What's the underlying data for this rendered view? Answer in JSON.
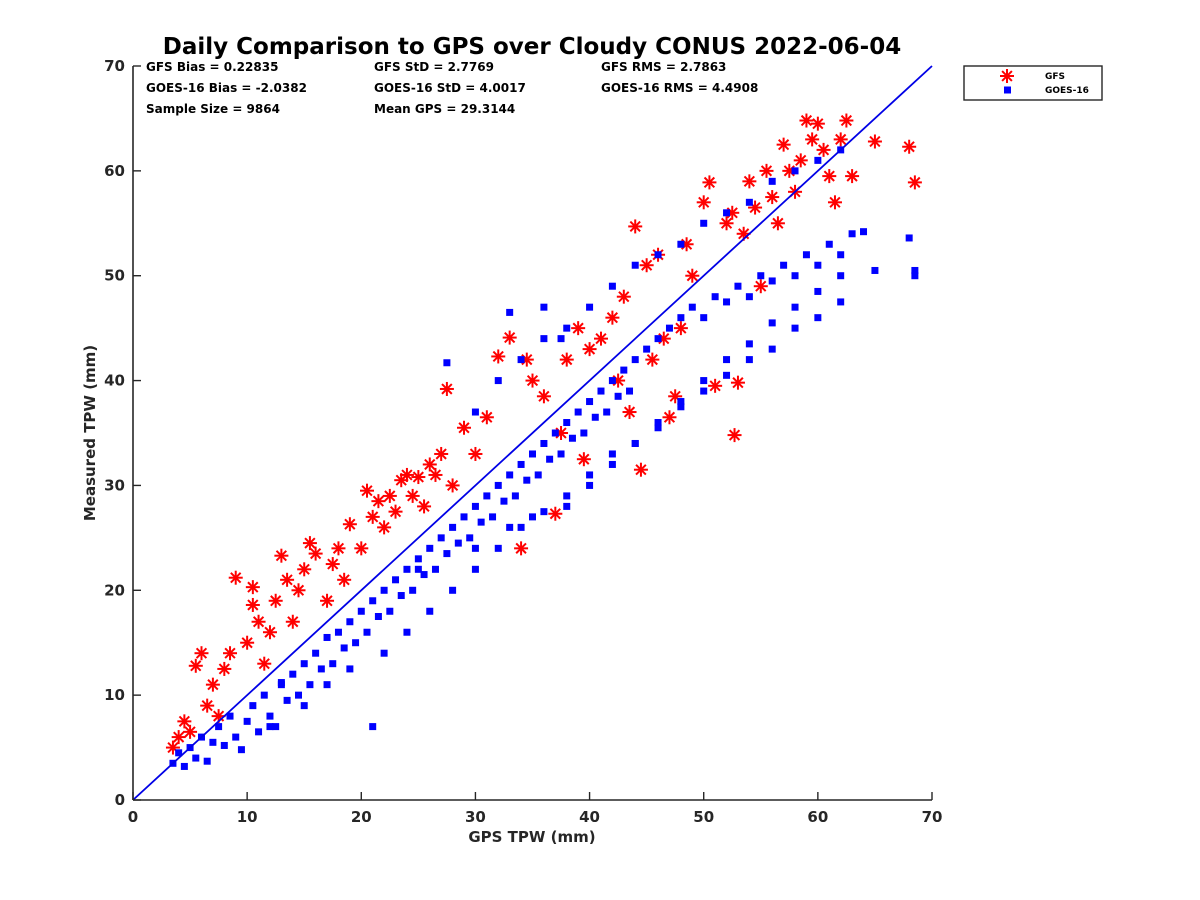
{
  "chart_data": {
    "type": "scatter",
    "title": "Daily Comparison to GPS over Cloudy CONUS 2022-06-04",
    "xlabel": "GPS TPW (mm)",
    "ylabel": "Measured TPW (mm)",
    "xlim": [
      0,
      70
    ],
    "ylim": [
      0,
      70
    ],
    "xticks": [
      "0",
      "10",
      "20",
      "30",
      "40",
      "50",
      "60",
      "70"
    ],
    "yticks": [
      "0",
      "10",
      "20",
      "30",
      "40",
      "50",
      "60",
      "70"
    ],
    "grid": false,
    "legend_position": "outside top-right",
    "reference_line": {
      "x": [
        0,
        70
      ],
      "y": [
        0,
        70
      ],
      "color": "#0000e6"
    },
    "stats": [
      "GFS Bias = 0.22835",
      "GFS StD = 2.7769",
      "GFS RMS = 2.7863",
      "GOES-16 Bias = -2.0382",
      "GOES-16 StD = 4.0017",
      "GOES-16 RMS = 4.4908",
      "Sample Size = 9864",
      "Mean GPS = 29.3144"
    ],
    "series": [
      {
        "name": "GFS",
        "marker": "asterisk",
        "color": "#ff0000",
        "points": [
          [
            3.5,
            5
          ],
          [
            4,
            6
          ],
          [
            4.5,
            7.5
          ],
          [
            5,
            6.5
          ],
          [
            5.5,
            12.8
          ],
          [
            6,
            14
          ],
          [
            6.5,
            9
          ],
          [
            7,
            11
          ],
          [
            7.5,
            8
          ],
          [
            8,
            12.5
          ],
          [
            8.5,
            14
          ],
          [
            9,
            21.2
          ],
          [
            10,
            15
          ],
          [
            10.5,
            20.3
          ],
          [
            10.5,
            18.6
          ],
          [
            11,
            17
          ],
          [
            11.5,
            13
          ],
          [
            12,
            16
          ],
          [
            12.5,
            19
          ],
          [
            13,
            23.3
          ],
          [
            13.5,
            21
          ],
          [
            14,
            17
          ],
          [
            14.5,
            20
          ],
          [
            15,
            22
          ],
          [
            15.5,
            24.5
          ],
          [
            16,
            23.5
          ],
          [
            17,
            19
          ],
          [
            17.5,
            22.5
          ],
          [
            18,
            24
          ],
          [
            18.5,
            21
          ],
          [
            19,
            26.3
          ],
          [
            20,
            24
          ],
          [
            20.5,
            29.5
          ],
          [
            21,
            27
          ],
          [
            21.5,
            28.5
          ],
          [
            22,
            26
          ],
          [
            22.5,
            29
          ],
          [
            23,
            27.5
          ],
          [
            23.5,
            30.5
          ],
          [
            24,
            31
          ],
          [
            24.5,
            29
          ],
          [
            25,
            30.8
          ],
          [
            25.5,
            28
          ],
          [
            26,
            32
          ],
          [
            26.5,
            31
          ],
          [
            27,
            33
          ],
          [
            27.5,
            39.2
          ],
          [
            28,
            30
          ],
          [
            29,
            35.5
          ],
          [
            30,
            33
          ],
          [
            31,
            36.5
          ],
          [
            32,
            42.3
          ],
          [
            33,
            44.1
          ],
          [
            34,
            24
          ],
          [
            34.5,
            42
          ],
          [
            35,
            40
          ],
          [
            36,
            38.5
          ],
          [
            37,
            27.3
          ],
          [
            37.5,
            35
          ],
          [
            38,
            42
          ],
          [
            39,
            45
          ],
          [
            39.5,
            32.5
          ],
          [
            40,
            43
          ],
          [
            41,
            44
          ],
          [
            42,
            46
          ],
          [
            42.5,
            40
          ],
          [
            43,
            48
          ],
          [
            43.5,
            37
          ],
          [
            44,
            54.7
          ],
          [
            44.5,
            31.5
          ],
          [
            45,
            51
          ],
          [
            45.5,
            42
          ],
          [
            46,
            52
          ],
          [
            46.5,
            44
          ],
          [
            47,
            36.5
          ],
          [
            47.5,
            38.5
          ],
          [
            48,
            45
          ],
          [
            48.5,
            53
          ],
          [
            49,
            50
          ],
          [
            50,
            57
          ],
          [
            50.5,
            58.9
          ],
          [
            51,
            39.5
          ],
          [
            52,
            55
          ],
          [
            52.5,
            56
          ],
          [
            53,
            39.8
          ],
          [
            53.5,
            54
          ],
          [
            54,
            59
          ],
          [
            54.5,
            56.5
          ],
          [
            55,
            49
          ],
          [
            55.5,
            60
          ],
          [
            56,
            57.5
          ],
          [
            56.5,
            55
          ],
          [
            57,
            62.5
          ],
          [
            57.5,
            60
          ],
          [
            58,
            58
          ],
          [
            58.5,
            61
          ],
          [
            59,
            64.8
          ],
          [
            59.5,
            63
          ],
          [
            60,
            64.5
          ],
          [
            60.5,
            62
          ],
          [
            61,
            59.5
          ],
          [
            61.5,
            57
          ],
          [
            62,
            63
          ],
          [
            62.5,
            64.8
          ],
          [
            63,
            59.5
          ],
          [
            65,
            62.8
          ],
          [
            68,
            62.3
          ],
          [
            68.5,
            58.9
          ],
          [
            52.7,
            34.8
          ]
        ]
      },
      {
        "name": "GOES-16",
        "marker": "square",
        "color": "#0000ff",
        "points": [
          [
            3.5,
            3.5
          ],
          [
            4,
            4.5
          ],
          [
            4.5,
            3.2
          ],
          [
            5,
            5
          ],
          [
            5.5,
            4
          ],
          [
            6,
            6
          ],
          [
            6.5,
            3.7
          ],
          [
            7,
            5.5
          ],
          [
            7.5,
            7
          ],
          [
            8,
            5.2
          ],
          [
            8.5,
            8
          ],
          [
            9,
            6
          ],
          [
            9.5,
            4.8
          ],
          [
            10,
            7.5
          ],
          [
            10.5,
            9
          ],
          [
            11,
            6.5
          ],
          [
            11.5,
            10
          ],
          [
            12,
            8
          ],
          [
            12.5,
            7
          ],
          [
            13,
            11
          ],
          [
            13.5,
            9.5
          ],
          [
            14,
            12
          ],
          [
            14.5,
            10
          ],
          [
            15,
            13
          ],
          [
            15.5,
            11
          ],
          [
            16,
            14
          ],
          [
            16.5,
            12.5
          ],
          [
            17,
            15.5
          ],
          [
            17.5,
            13
          ],
          [
            18,
            16
          ],
          [
            18.5,
            14.5
          ],
          [
            19,
            17
          ],
          [
            19.5,
            15
          ],
          [
            20,
            18
          ],
          [
            20.5,
            16
          ],
          [
            21,
            19
          ],
          [
            21.5,
            17.5
          ],
          [
            22,
            20
          ],
          [
            22.5,
            18
          ],
          [
            23,
            21
          ],
          [
            23.5,
            19.5
          ],
          [
            24,
            22
          ],
          [
            24.5,
            20
          ],
          [
            25,
            23
          ],
          [
            25.5,
            21.5
          ],
          [
            26,
            24
          ],
          [
            26.5,
            22
          ],
          [
            27,
            25
          ],
          [
            27.5,
            23.5
          ],
          [
            28,
            26
          ],
          [
            28.5,
            24.5
          ],
          [
            29,
            27
          ],
          [
            29.5,
            25
          ],
          [
            30,
            28
          ],
          [
            30.5,
            26.5
          ],
          [
            31,
            29
          ],
          [
            31.5,
            27
          ],
          [
            32,
            30
          ],
          [
            32.5,
            28.5
          ],
          [
            33,
            31
          ],
          [
            33.5,
            29
          ],
          [
            34,
            32
          ],
          [
            34.5,
            30.5
          ],
          [
            35,
            33
          ],
          [
            35.5,
            31
          ],
          [
            36,
            34
          ],
          [
            36.5,
            32.5
          ],
          [
            37,
            35
          ],
          [
            37.5,
            33
          ],
          [
            38,
            36
          ],
          [
            38.5,
            34.5
          ],
          [
            39,
            37
          ],
          [
            39.5,
            35
          ],
          [
            40,
            38
          ],
          [
            40.5,
            36.5
          ],
          [
            41,
            39
          ],
          [
            41.5,
            37
          ],
          [
            42,
            40
          ],
          [
            42.5,
            38.5
          ],
          [
            43,
            41
          ],
          [
            43.5,
            39
          ],
          [
            44,
            42
          ],
          [
            45,
            43
          ],
          [
            46,
            44
          ],
          [
            47,
            45
          ],
          [
            48,
            46
          ],
          [
            49,
            47
          ],
          [
            50,
            46
          ],
          [
            51,
            48
          ],
          [
            52,
            47.5
          ],
          [
            53,
            49
          ],
          [
            54,
            48
          ],
          [
            55,
            50
          ],
          [
            56,
            49.5
          ],
          [
            57,
            51
          ],
          [
            58,
            50
          ],
          [
            59,
            52
          ],
          [
            60,
            51
          ],
          [
            61,
            53
          ],
          [
            62,
            52
          ],
          [
            63,
            54
          ],
          [
            64,
            54.2
          ],
          [
            68,
            53.6
          ],
          [
            68.5,
            50.5
          ],
          [
            68.5,
            50
          ],
          [
            65,
            50.5
          ],
          [
            27.5,
            41.7
          ],
          [
            33,
            46.5
          ],
          [
            36,
            47
          ],
          [
            37.5,
            44
          ],
          [
            13,
            11.2
          ],
          [
            21,
            7
          ],
          [
            25,
            22
          ],
          [
            30,
            24
          ],
          [
            33,
            26
          ],
          [
            35,
            27
          ],
          [
            38,
            29
          ],
          [
            40,
            31
          ],
          [
            42,
            33
          ],
          [
            44,
            34
          ],
          [
            46,
            35.5
          ],
          [
            48,
            38
          ],
          [
            50,
            40
          ],
          [
            52,
            42
          ],
          [
            54,
            43.5
          ],
          [
            56,
            45.5
          ],
          [
            58,
            47
          ],
          [
            60,
            48.5
          ],
          [
            62,
            50
          ],
          [
            12,
            7
          ],
          [
            15,
            9
          ],
          [
            17,
            11
          ],
          [
            19,
            12.5
          ],
          [
            22,
            14
          ],
          [
            24,
            16
          ],
          [
            26,
            18
          ],
          [
            28,
            20
          ],
          [
            30,
            22
          ],
          [
            32,
            24
          ],
          [
            34,
            26
          ],
          [
            36,
            27.5
          ],
          [
            38,
            28
          ],
          [
            40,
            30
          ],
          [
            42,
            32
          ],
          [
            44,
            34
          ],
          [
            46,
            36
          ],
          [
            48,
            37.5
          ],
          [
            50,
            39
          ],
          [
            52,
            40.5
          ],
          [
            54,
            42
          ],
          [
            56,
            43
          ],
          [
            58,
            45
          ],
          [
            60,
            46
          ],
          [
            62,
            47.5
          ],
          [
            30,
            37
          ],
          [
            32,
            40
          ],
          [
            34,
            42
          ],
          [
            36,
            44
          ],
          [
            38,
            45
          ],
          [
            40,
            47
          ],
          [
            42,
            49
          ],
          [
            44,
            51
          ],
          [
            46,
            52
          ],
          [
            48,
            53
          ],
          [
            50,
            55
          ],
          [
            52,
            56
          ],
          [
            54,
            57
          ],
          [
            56,
            59
          ],
          [
            58,
            60
          ],
          [
            60,
            61
          ],
          [
            62,
            62
          ]
        ]
      }
    ]
  }
}
